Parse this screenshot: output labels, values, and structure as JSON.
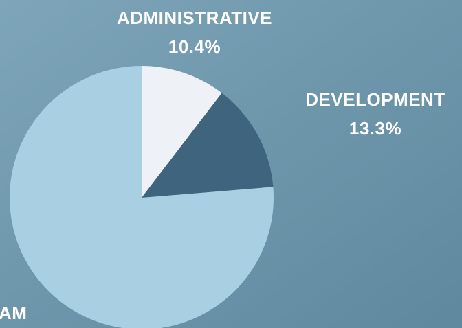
{
  "chart_data": {
    "type": "pie",
    "categories": [
      "ADMINISTRATIVE",
      "DEVELOPMENT",
      "AM"
    ],
    "values": [
      10.4,
      13.3,
      76.3
    ],
    "value_labels": [
      "10.4%",
      "13.3%",
      null
    ],
    "colors": [
      "#eef2f6",
      "#3e657d",
      "#a9cfe2"
    ]
  }
}
